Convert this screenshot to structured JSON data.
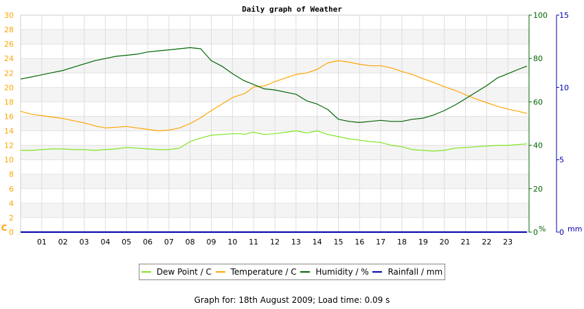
{
  "chart_data": {
    "type": "line",
    "title": "Daily graph of Weather",
    "x_tick_labels": [
      "01",
      "02",
      "03",
      "04",
      "05",
      "06",
      "07",
      "08",
      "09",
      "10",
      "11",
      "12",
      "13",
      "14",
      "15",
      "16",
      "17",
      "18",
      "19",
      "20",
      "21",
      "22",
      "23"
    ],
    "x_range": [
      0,
      24
    ],
    "axes": {
      "left": {
        "unit_label": "C",
        "range": [
          0,
          30
        ],
        "ticks": [
          0,
          2,
          4,
          6,
          8,
          10,
          12,
          14,
          16,
          18,
          20,
          22,
          24,
          26,
          28,
          30
        ],
        "color": "#FFA500"
      },
      "right1": {
        "unit_label": "%",
        "range": [
          0,
          100
        ],
        "ticks": [
          0,
          20,
          40,
          60,
          80,
          100
        ],
        "color": "#006400"
      },
      "right2": {
        "unit_label": "mm",
        "range": [
          0,
          15
        ],
        "ticks": [
          0,
          5,
          10,
          15
        ],
        "color": "#0000AA"
      }
    },
    "grid": true,
    "legend_position": "bottom",
    "series": [
      {
        "name": "Dew Point / C",
        "axis": "left",
        "color": "#7FE51F",
        "x": [
          0,
          0.5,
          1,
          1.5,
          2,
          2.5,
          3,
          3.5,
          4,
          4.5,
          5,
          5.5,
          6,
          6.5,
          7,
          7.5,
          8,
          8.5,
          9,
          9.5,
          10,
          10.4,
          10.6,
          10.8,
          11,
          11.5,
          12,
          12.5,
          13,
          13.5,
          14,
          14.5,
          15,
          15.5,
          16,
          16.5,
          17,
          17.5,
          18,
          18.5,
          19,
          19.5,
          20,
          20.5,
          21,
          21.5,
          22,
          22.5,
          23,
          23.5,
          23.9
        ],
        "y": [
          11.3,
          11.3,
          11.4,
          11.5,
          11.5,
          11.4,
          11.4,
          11.3,
          11.4,
          11.5,
          11.7,
          11.6,
          11.5,
          11.4,
          11.4,
          11.6,
          12.5,
          13.0,
          13.4,
          13.5,
          13.6,
          13.6,
          13.5,
          13.7,
          13.8,
          13.5,
          13.6,
          13.8,
          14.0,
          13.7,
          14.0,
          13.5,
          13.2,
          12.9,
          12.7,
          12.5,
          12.4,
          12.0,
          11.8,
          11.4,
          11.3,
          11.2,
          11.3,
          11.6,
          11.7,
          11.8,
          11.9,
          12.0,
          12.0,
          12.1,
          12.2
        ]
      },
      {
        "name": "Temperature / C",
        "axis": "left",
        "color": "#FFA500",
        "x": [
          0,
          0.5,
          1,
          1.5,
          2,
          2.5,
          3,
          3.5,
          4,
          4.5,
          5,
          5.5,
          6,
          6.5,
          7,
          7.5,
          8,
          8.5,
          9,
          9.5,
          10,
          10.4,
          10.6,
          10.8,
          11,
          11.5,
          12,
          12.5,
          13,
          13.5,
          14,
          14.5,
          15,
          15.5,
          16,
          16.5,
          17,
          17.5,
          18,
          18.5,
          19,
          19.5,
          20,
          20.5,
          21,
          21.5,
          22,
          22.5,
          23,
          23.5,
          23.9
        ],
        "y": [
          16.7,
          16.3,
          16.1,
          15.9,
          15.7,
          15.4,
          15.1,
          14.7,
          14.4,
          14.5,
          14.6,
          14.4,
          14.2,
          14.0,
          14.1,
          14.4,
          15.0,
          15.8,
          16.8,
          17.7,
          18.6,
          19.0,
          19.2,
          19.6,
          20.1,
          20.2,
          20.8,
          21.3,
          21.8,
          22.0,
          22.5,
          23.4,
          23.7,
          23.5,
          23.2,
          23.0,
          23.0,
          22.7,
          22.2,
          21.8,
          21.2,
          20.7,
          20.1,
          19.6,
          19.0,
          18.4,
          17.9,
          17.4,
          17.0,
          16.7,
          16.4
        ]
      },
      {
        "name": "Humidity / %",
        "axis": "right1",
        "color": "#006400",
        "x": [
          0,
          0.5,
          1,
          1.5,
          2,
          2.5,
          3,
          3.5,
          4,
          4.5,
          5,
          5.5,
          6,
          6.5,
          7,
          7.5,
          8,
          8.5,
          9,
          9.5,
          10,
          10.5,
          11,
          11.5,
          12,
          12.5,
          13,
          13.5,
          14,
          14.5,
          15,
          15.5,
          16,
          16.5,
          17,
          17.5,
          18,
          18.5,
          19,
          19.5,
          20,
          20.5,
          21,
          21.5,
          22,
          22.5,
          23,
          23.5,
          23.9
        ],
        "y": [
          70.5,
          71.5,
          72.5,
          73.5,
          74.5,
          76,
          77.5,
          79,
          80,
          81,
          81.5,
          82,
          83,
          83.5,
          84,
          84.5,
          85,
          84.5,
          79,
          76.5,
          73,
          70,
          68,
          66,
          65.5,
          64.5,
          63.5,
          60.5,
          59,
          56.5,
          52,
          51,
          50.5,
          51,
          51.5,
          51,
          51,
          52,
          52.5,
          54,
          56,
          58.5,
          61.5,
          64.5,
          67.5,
          71,
          73,
          75,
          76.5
        ]
      },
      {
        "name": "Rainfall / mm",
        "axis": "right2",
        "color": "#0000AA",
        "x": [
          0,
          23.9
        ],
        "y": [
          0,
          0
        ]
      }
    ]
  },
  "footer": {
    "text": "Graph for: 18th August 2009; Load time: 0.09 s"
  }
}
